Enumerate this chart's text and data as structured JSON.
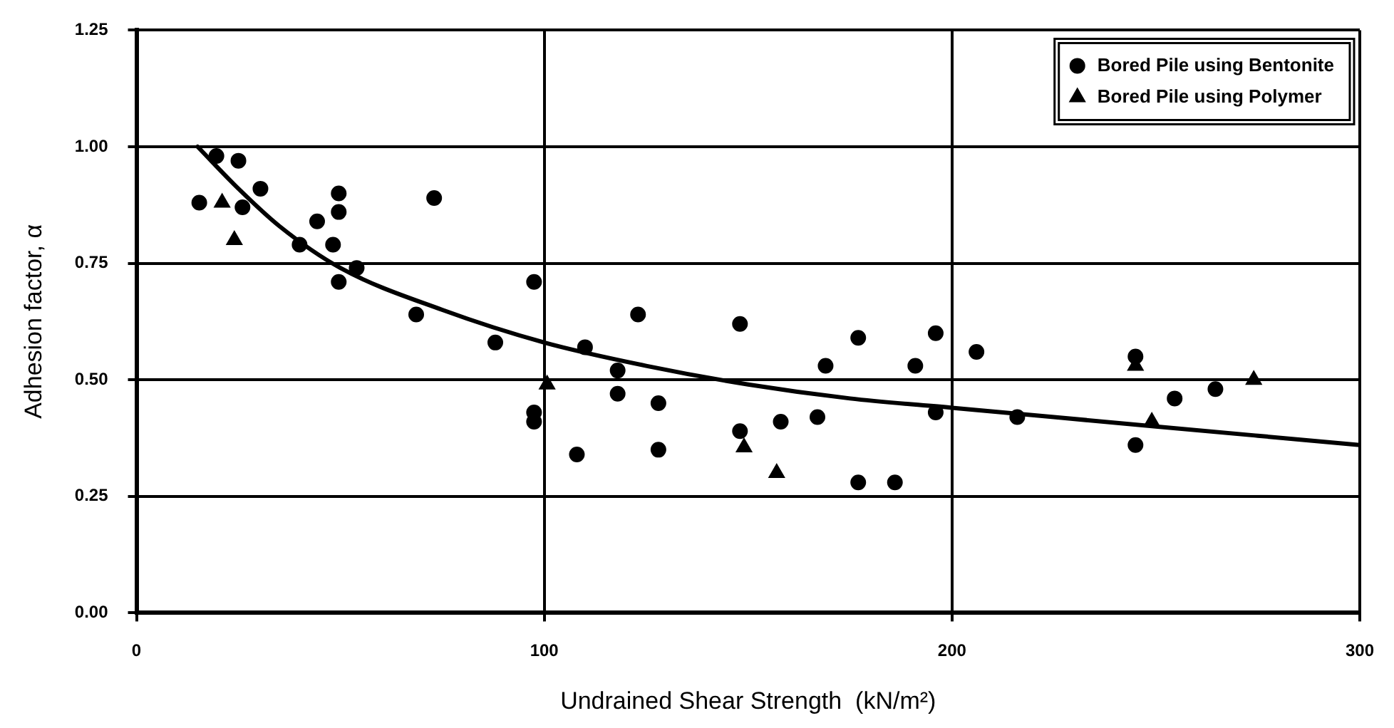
{
  "chart_data": {
    "type": "scatter",
    "xlabel": "Undrained Shear Strength  (kN/m²)",
    "ylabel": "Adhesion factor, α",
    "xlim": [
      0,
      300
    ],
    "xticks": [
      0,
      100,
      200,
      300
    ],
    "ylim": [
      0,
      1.25
    ],
    "yticks": [
      {
        "value": 0,
        "label": "0.00"
      },
      {
        "value": 0.25,
        "label": "0.25"
      },
      {
        "value": 0.5,
        "label": "0.50"
      },
      {
        "value": 0.75,
        "label": "0.75"
      },
      {
        "value": 1,
        "label": "1.00"
      },
      {
        "value": 1.25,
        "label": "1.25"
      }
    ],
    "grid": true,
    "legend": "top right",
    "series": [
      {
        "name": "Bored Pile using Bentonite",
        "color": "#000000",
        "marker": "circle",
        "x": [
          15.4,
          19.6,
          25,
          26,
          30.4,
          40,
          44.3,
          49.6,
          49.6,
          48.2,
          54,
          49.6,
          73,
          68.6,
          88,
          97.5,
          110,
          97.5,
          97.5,
          108,
          123,
          118,
          118,
          128,
          128,
          148,
          148,
          158,
          167,
          169,
          177,
          177,
          186,
          191,
          196,
          196,
          206,
          216,
          245,
          245,
          254.6,
          264.6
        ],
        "values": [
          0.88,
          0.98,
          0.97,
          0.87,
          0.91,
          0.79,
          0.84,
          0.9,
          0.86,
          0.79,
          0.74,
          0.71,
          0.89,
          0.64,
          0.58,
          0.71,
          0.57,
          0.43,
          0.41,
          0.34,
          0.64,
          0.52,
          0.47,
          0.45,
          0.35,
          0.62,
          0.39,
          0.41,
          0.42,
          0.53,
          0.59,
          0.28,
          0.28,
          0.53,
          0.6,
          0.43,
          0.56,
          0.42,
          0.55,
          0.36,
          0.46,
          0.48
        ]
      },
      {
        "name": "Bored Pile using Polymer",
        "color": "#000000",
        "marker": "triangle",
        "x": [
          21,
          24,
          100.7,
          149,
          157,
          245,
          249,
          274
        ],
        "values": [
          0.88,
          0.8,
          0.49,
          0.355,
          0.3,
          0.53,
          0.41,
          0.5
        ]
      },
      {
        "type": "line",
        "color": "#000000",
        "marker": "none",
        "line_style": "solid",
        "x": [
          15,
          25,
          35,
          50,
          75,
          100,
          125,
          150,
          175,
          200,
          225,
          250,
          275,
          300
        ],
        "values": [
          1.0,
          0.91,
          0.83,
          0.74,
          0.65,
          0.58,
          0.53,
          0.49,
          0.46,
          0.44,
          0.42,
          0.4,
          0.38,
          0.36
        ]
      }
    ]
  }
}
